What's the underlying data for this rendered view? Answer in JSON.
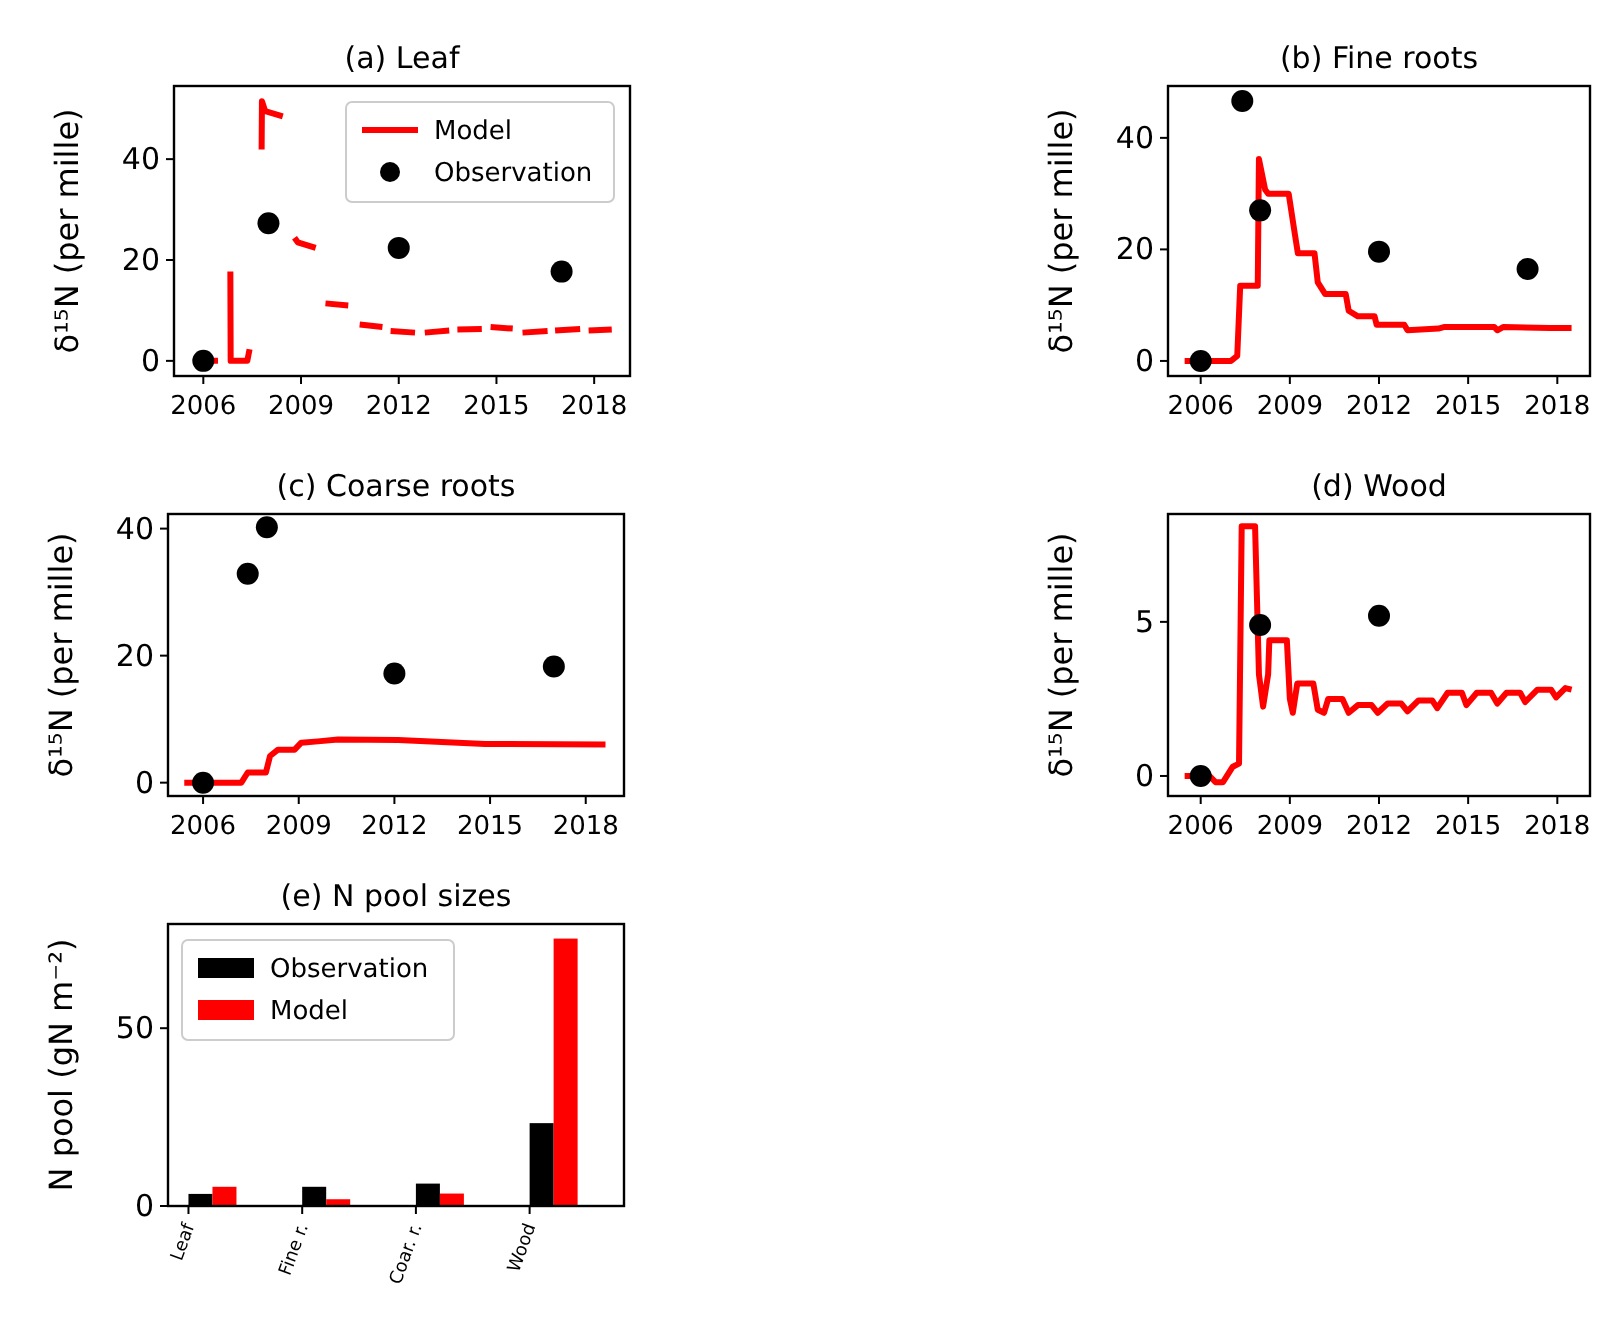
{
  "chart_data": [
    {
      "type": "line",
      "title": "(a) Leaf",
      "ylabel": "δ¹⁵N (per mille)",
      "xlim": [
        2005.1,
        2019.1
      ],
      "xticks": [
        2006,
        2009,
        2012,
        2015,
        2018
      ],
      "ylim": [
        -3,
        54.5
      ],
      "yticks": [
        0,
        20,
        40
      ],
      "grid": false,
      "legend": "top right",
      "line_style": "solid",
      "series": [
        {
          "name": "Model",
          "type": "line",
          "color": "#ff0000",
          "x": [
            2005.9,
            2006.45,
            2006.6,
            2006.83,
            2006.84,
            2007.35,
            2007.42,
            2007.6,
            2007.79,
            2007.8,
            2007.9,
            2008.44,
            2008.6,
            2008.8,
            2008.9,
            2009.45,
            2009.6,
            2009.75,
            2010.45,
            2010.6,
            2010.8,
            2011.5,
            2011.6,
            2011.75,
            2012.5,
            2012.6,
            2012.8,
            2013.55,
            2013.7,
            2013.8,
            2014.55,
            2014.7,
            2014.82,
            2015.5,
            2015.65,
            2015.8,
            2016.57,
            2016.7,
            2016.8,
            2017.57,
            2017.7,
            2017.83,
            2018.54
          ],
          "values": [
            0,
            0,
            null,
            17.7,
            0,
            0,
            2.3,
            null,
            41.9,
            51.5,
            49.5,
            48.5,
            null,
            24.4,
            23.5,
            22.4,
            null,
            11.4,
            11.0,
            null,
            7.2,
            6.7,
            null,
            5.9,
            5.6,
            null,
            5.6,
            6.0,
            null,
            6.2,
            6.3,
            null,
            6.7,
            6.4,
            null,
            5.6,
            5.9,
            null,
            6.0,
            6.3,
            null,
            6.0,
            6.2
          ]
        },
        {
          "name": "Observation",
          "type": "scatter",
          "marker": "circle",
          "color": "#000000",
          "x": [
            2006,
            2008,
            2012,
            2017
          ],
          "values": [
            0,
            27.3,
            22.4,
            17.7
          ]
        }
      ]
    },
    {
      "type": "line",
      "title": "(b) Fine roots",
      "ylabel": "δ¹⁵N (per mille)",
      "xlim": [
        2004.9,
        2019.1
      ],
      "xticks": [
        2006,
        2009,
        2012,
        2015,
        2018
      ],
      "ylim": [
        -2.7,
        49.3
      ],
      "yticks": [
        0,
        20,
        40
      ],
      "grid": false,
      "line_style": "solid",
      "series": [
        {
          "type": "line",
          "color": "#ff0000",
          "x": [
            2005.46,
            2007.02,
            2007.23,
            2007.33,
            2007.92,
            2007.96,
            2008.17,
            2008.27,
            2008.96,
            2009.17,
            2009.27,
            2009.83,
            2009.94,
            2010.19,
            2010.88,
            2010.98,
            2011.29,
            2011.85,
            2011.92,
            2012.85,
            2012.96,
            2014.0,
            2014.21,
            2015.88,
            2015.98,
            2016.19,
            2017.75,
            2018.48
          ],
          "values": [
            0,
            0,
            0.9,
            13.5,
            13.5,
            36.2,
            30.7,
            30,
            30,
            22.7,
            19.3,
            19.3,
            14.1,
            12,
            12,
            9,
            8,
            8,
            6.5,
            6.5,
            5.5,
            5.8,
            6.1,
            6.1,
            5.5,
            6.1,
            5.9,
            5.9
          ]
        },
        {
          "type": "scatter",
          "marker": "circle",
          "color": "#000000",
          "x": [
            2006,
            2007.4,
            2008,
            2012,
            2017
          ],
          "values": [
            0,
            46.6,
            27.0,
            19.6,
            16.5
          ]
        }
      ]
    },
    {
      "type": "line",
      "title": "(c) Coarse roots",
      "ylabel": "δ¹⁵N (per mille)",
      "xlim": [
        2004.9,
        2019.2
      ],
      "xticks": [
        2006,
        2009,
        2012,
        2015,
        2018
      ],
      "ylim": [
        -2.1,
        42.3
      ],
      "yticks": [
        0,
        20,
        40
      ],
      "grid": false,
      "line_style": "solid",
      "series": [
        {
          "type": "line",
          "color": "#ff0000",
          "x": [
            2005.41,
            2007.2,
            2007.4,
            2007.97,
            2008.1,
            2008.35,
            2008.87,
            2009.08,
            2009.6,
            2010.23,
            2012.12,
            2014.85,
            2018.62
          ],
          "values": [
            0,
            0,
            1.6,
            1.6,
            4.2,
            5.2,
            5.2,
            6.3,
            6.5,
            6.8,
            6.7,
            6.1,
            6.0
          ]
        },
        {
          "type": "scatter",
          "marker": "circle",
          "color": "#000000",
          "x": [
            2006,
            2007.4,
            2008,
            2012,
            2017
          ],
          "values": [
            0,
            32.9,
            40.2,
            17.2,
            18.3
          ]
        }
      ]
    },
    {
      "type": "line",
      "title": "(d) Wood",
      "ylabel": "δ¹⁵N (per mille)",
      "xlim": [
        2004.9,
        2019.1
      ],
      "xticks": [
        2006,
        2009,
        2012,
        2015,
        2018
      ],
      "ylim": [
        -0.65,
        8.5
      ],
      "yticks": [
        0,
        5
      ],
      "grid": false,
      "line_style": "solid",
      "series": [
        {
          "type": "line",
          "color": "#ff0000",
          "x": [
            2005.46,
            2006.29,
            2006.5,
            2006.75,
            2007.08,
            2007.29,
            2007.38,
            2007.83,
            2007.96,
            2008.1,
            2008.27,
            2008.31,
            2008.9,
            2009.0,
            2009.1,
            2009.25,
            2009.79,
            2009.94,
            2010.15,
            2010.29,
            2010.77,
            2010.98,
            2011.29,
            2011.75,
            2011.96,
            2012.29,
            2012.75,
            2012.96,
            2013.33,
            2013.79,
            2013.96,
            2014.31,
            2014.79,
            2014.94,
            2015.29,
            2015.77,
            2015.98,
            2016.29,
            2016.75,
            2016.92,
            2017.33,
            2017.79,
            2017.96,
            2018.27,
            2018.48
          ],
          "values": [
            0,
            0,
            -0.2,
            -0.2,
            0.3,
            0.4,
            8.1,
            8.1,
            3.3,
            2.25,
            3.3,
            4.4,
            4.4,
            2.5,
            2.05,
            3,
            3,
            2.15,
            2.05,
            2.5,
            2.5,
            2.05,
            2.3,
            2.3,
            2.05,
            2.35,
            2.35,
            2.1,
            2.45,
            2.45,
            2.2,
            2.7,
            2.7,
            2.3,
            2.7,
            2.7,
            2.35,
            2.7,
            2.7,
            2.4,
            2.8,
            2.8,
            2.55,
            2.85,
            2.8
          ]
        },
        {
          "type": "scatter",
          "marker": "circle",
          "color": "#000000",
          "x": [
            2006,
            2008,
            2012
          ],
          "values": [
            0,
            4.9,
            5.2
          ]
        }
      ]
    },
    {
      "type": "bar",
      "title": "(e) N pool sizes",
      "ylabel": "N pool (gN m⁻²)",
      "categories": [
        "Leaf",
        "Fine r.",
        "Coar. r.",
        "Wood"
      ],
      "ylim": [
        0,
        79.3
      ],
      "yticks": [
        0,
        50
      ],
      "grid": false,
      "legend": "top left",
      "series": [
        {
          "name": "Observation",
          "color": "#000000",
          "values": [
            3.4,
            5.4,
            6.3,
            23.3
          ]
        },
        {
          "name": "Model",
          "color": "#ff0000",
          "values": [
            5.4,
            1.9,
            3.5,
            75.2
          ]
        }
      ]
    }
  ]
}
